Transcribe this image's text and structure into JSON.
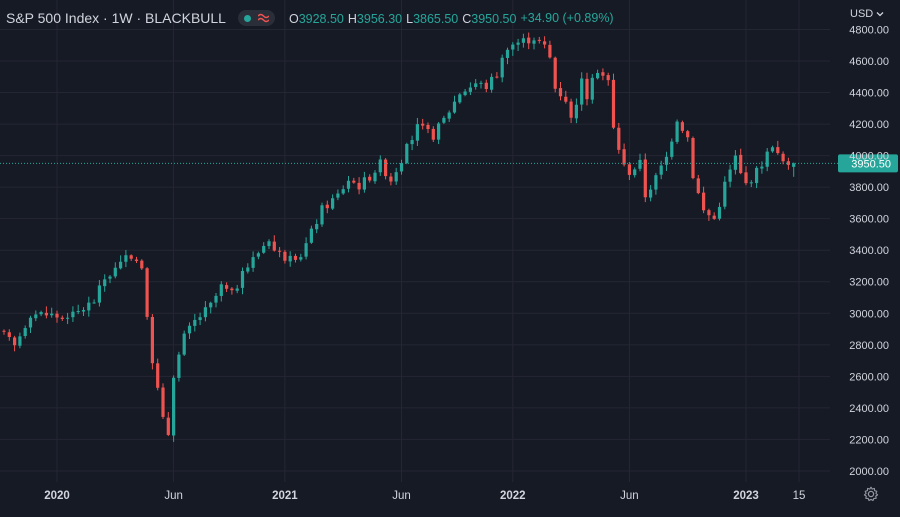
{
  "header": {
    "title": "S&P 500 Index · 1W · BLACKBULL",
    "ohlc": [
      {
        "k": "O",
        "v": "3928.50"
      },
      {
        "k": "H",
        "v": "3956.30"
      },
      {
        "k": "L",
        "v": "3865.50"
      },
      {
        "k": "C",
        "v": "3950.50"
      }
    ],
    "change": "+34.90 (+0.89%)",
    "currency": "USD"
  },
  "icons": {
    "status": "green-dot-icon",
    "wave": "wave-icon",
    "chevron": "chevron-down-icon",
    "settings": "gear-icon"
  },
  "colors": {
    "background": "#161a25",
    "up": "#26a69a",
    "down": "#ef5350",
    "grid": "#242733",
    "text": "#d1d4dc",
    "price_line": "#26a69a"
  },
  "chart_data": {
    "type": "candlestick",
    "interval": "1W",
    "y_range": [
      1930,
      4860
    ],
    "y_ticks": [
      {
        "label": "2000.00",
        "value": 2000
      },
      {
        "label": "2200.00",
        "value": 2200
      },
      {
        "label": "2400.00",
        "value": 2400
      },
      {
        "label": "2600.00",
        "value": 2600
      },
      {
        "label": "2800.00",
        "value": 2800
      },
      {
        "label": "3000.00",
        "value": 3000
      },
      {
        "label": "3200.00",
        "value": 3200
      },
      {
        "label": "3400.00",
        "value": 3400
      },
      {
        "label": "3600.00",
        "value": 3600
      },
      {
        "label": "3800.00",
        "value": 3800
      },
      {
        "label": "4000.00",
        "value": 4000
      },
      {
        "label": "4200.00",
        "value": 4200
      },
      {
        "label": "4400.00",
        "value": 4400
      },
      {
        "label": "4600.00",
        "value": 4600
      },
      {
        "label": "4800.00",
        "value": 4800
      }
    ],
    "x_ticks": [
      {
        "label": "2020",
        "bar": 10,
        "bold": true
      },
      {
        "label": "Jun",
        "bar": 32,
        "bold": false
      },
      {
        "label": "2021",
        "bar": 53,
        "bold": true
      },
      {
        "label": "Jun",
        "bar": 75,
        "bold": false
      },
      {
        "label": "2022",
        "bar": 96,
        "bold": true
      },
      {
        "label": "Jun",
        "bar": 118,
        "bold": false
      },
      {
        "label": "2023",
        "bar": 140,
        "bold": true
      },
      {
        "label": "15",
        "bar": 150,
        "bold": false
      }
    ],
    "last_price": {
      "value": 3950.5,
      "label": "3950.50"
    },
    "close_path": [
      [
        0,
        2860
      ],
      [
        2,
        2790
      ],
      [
        5,
        3000
      ],
      [
        9,
        2990
      ],
      [
        12,
        2960
      ],
      [
        13,
        2985
      ],
      [
        17,
        3080
      ],
      [
        19,
        3220
      ],
      [
        24,
        3370
      ],
      [
        26,
        3300
      ],
      [
        27,
        2950
      ],
      [
        28,
        2710
      ],
      [
        30,
        2320
      ],
      [
        31,
        2240
      ],
      [
        32,
        2620
      ],
      [
        34,
        2850
      ],
      [
        36,
        2950
      ],
      [
        39,
        3050
      ],
      [
        41,
        3170
      ],
      [
        43,
        3120
      ],
      [
        46,
        3300
      ],
      [
        48,
        3390
      ],
      [
        50,
        3480
      ],
      [
        51,
        3400
      ],
      [
        53,
        3360
      ],
      [
        55,
        3310
      ],
      [
        57,
        3440
      ],
      [
        60,
        3660
      ],
      [
        63,
        3750
      ],
      [
        65,
        3850
      ],
      [
        67,
        3810
      ],
      [
        69,
        3870
      ],
      [
        71,
        3950
      ],
      [
        73,
        3850
      ],
      [
        75,
        3980
      ],
      [
        78,
        4180
      ],
      [
        81,
        4130
      ],
      [
        83,
        4230
      ],
      [
        86,
        4400
      ],
      [
        89,
        4460
      ],
      [
        91,
        4440
      ],
      [
        93,
        4520
      ],
      [
        95,
        4700
      ],
      [
        98,
        4730
      ],
      [
        100,
        4750
      ],
      [
        102,
        4690
      ],
      [
        103,
        4620
      ],
      [
        104,
        4430
      ],
      [
        106,
        4360
      ],
      [
        107,
        4230
      ],
      [
        109,
        4470
      ],
      [
        110,
        4380
      ],
      [
        112,
        4550
      ],
      [
        114,
        4470
      ],
      [
        115,
        4170
      ],
      [
        117,
        3930
      ],
      [
        118,
        3900
      ],
      [
        120,
        3950
      ],
      [
        121,
        3750
      ],
      [
        123,
        3860
      ],
      [
        125,
        3990
      ],
      [
        127,
        4240
      ],
      [
        129,
        4120
      ],
      [
        130,
        3880
      ],
      [
        131,
        3760
      ],
      [
        132,
        3650
      ],
      [
        134,
        3600
      ],
      [
        135,
        3700
      ],
      [
        136,
        3820
      ],
      [
        138,
        3990
      ],
      [
        139,
        3880
      ],
      [
        140,
        3820
      ],
      [
        142,
        3900
      ],
      [
        144,
        4010
      ],
      [
        145,
        4080
      ],
      [
        146,
        4000
      ],
      [
        148,
        3920
      ],
      [
        149,
        3950.5
      ]
    ],
    "gaps": [
      12
    ]
  }
}
